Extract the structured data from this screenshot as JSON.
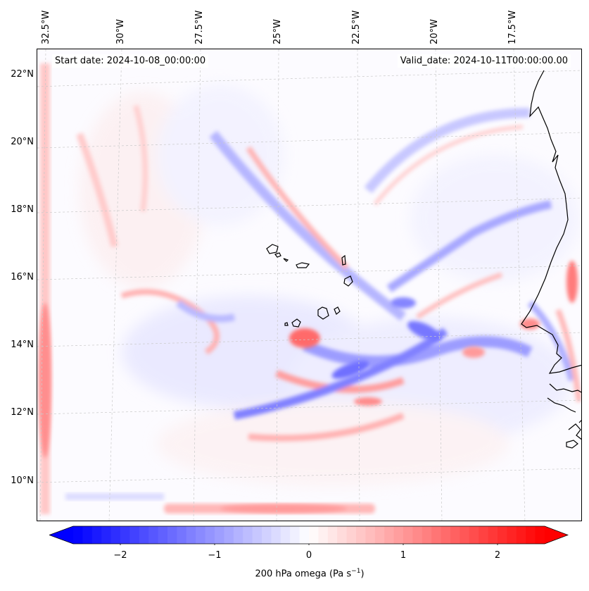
{
  "header": {
    "start_date": "Start date: 2024-10-08_00:00:00",
    "valid_date": "Valid_date: 2024-10-11T00:00:00.00"
  },
  "map": {
    "variable": "200 hPa omega",
    "longitude_labels": [
      "32.5°W",
      "30°W",
      "27.5°W",
      "25°W",
      "22.5°W",
      "20°W",
      "17.5°W"
    ],
    "latitude_labels": [
      "22°N",
      "20°N",
      "18°N",
      "16°N",
      "14°N",
      "12°N",
      "10°N"
    ],
    "extent": {
      "lon_min": -32.7,
      "lon_max": -15.6,
      "lat_min": 8.9,
      "lat_max": 22.7
    },
    "gridlines": true,
    "coastline": true
  },
  "colorbar": {
    "label_text": "200 hPa omega (Pa s",
    "label_exponent": "−1",
    "label_close": ")",
    "ticks": [
      "−2",
      "−1",
      "0",
      "1",
      "2"
    ],
    "tick_values": [
      -2,
      -1,
      0,
      1,
      2
    ],
    "range": [
      -2.5,
      2.5
    ],
    "extend": "both",
    "colors": {
      "negative": "#0000ff",
      "zero": "#ffffff",
      "positive": "#ff0000"
    }
  }
}
